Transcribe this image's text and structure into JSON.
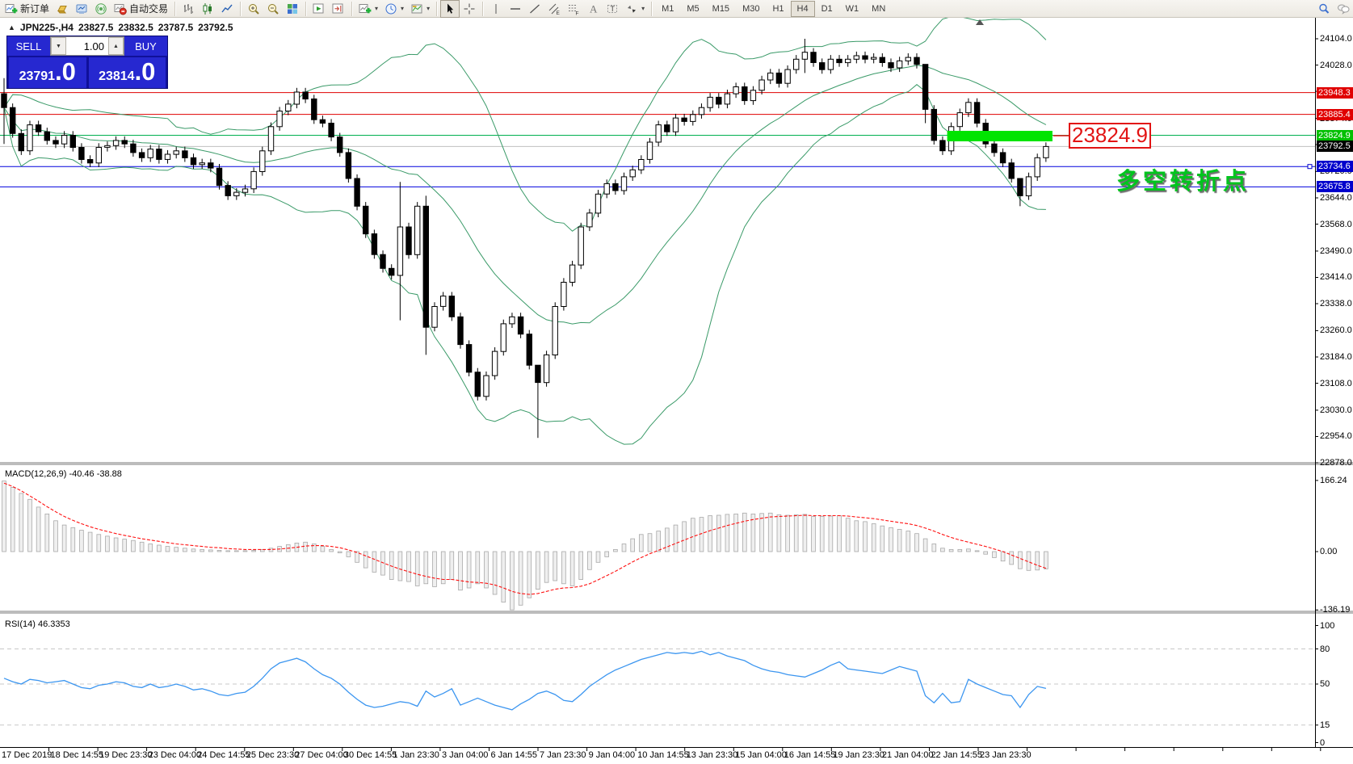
{
  "toolbar": {
    "buttons": [
      {
        "name": "new-order",
        "icon": "new-order-icon",
        "label": "新订单"
      },
      {
        "name": "market",
        "icon": "gold-icon"
      },
      {
        "name": "market-watch",
        "icon": "monitor-icon"
      },
      {
        "name": "signals",
        "icon": "signal-icon"
      },
      {
        "name": "autotrading",
        "icon": "autotrading-icon",
        "label": "自动交易"
      },
      {
        "type": "sep"
      },
      {
        "name": "bar-chart-mode",
        "icon": "bar-chart-icon"
      },
      {
        "name": "candle-chart-mode",
        "icon": "candlestick-icon"
      },
      {
        "name": "line-chart-mode",
        "icon": "line-chart-icon"
      },
      {
        "type": "sep"
      },
      {
        "name": "zoom-in",
        "icon": "zoom-in-icon"
      },
      {
        "name": "zoom-out",
        "icon": "zoom-out-icon"
      },
      {
        "name": "tile-windows",
        "icon": "tile-windows-icon"
      },
      {
        "type": "sep"
      },
      {
        "name": "chart-shift",
        "icon": "chart-shift-icon"
      },
      {
        "name": "auto-scroll",
        "icon": "auto-scroll-icon"
      },
      {
        "type": "sep"
      },
      {
        "name": "indicators",
        "icon": "indicators-icon",
        "dropdown": true
      },
      {
        "name": "periods",
        "icon": "clock-icon",
        "dropdown": true
      },
      {
        "name": "templates",
        "icon": "templates-icon",
        "dropdown": true
      },
      {
        "type": "sep"
      },
      {
        "name": "cursor",
        "icon": "cursor-icon",
        "active": true
      },
      {
        "name": "crosshair",
        "icon": "crosshair-icon"
      },
      {
        "type": "sep"
      },
      {
        "name": "vertical-line",
        "icon": "vertical-line-icon"
      },
      {
        "name": "horizontal-line",
        "icon": "horizontal-line-icon"
      },
      {
        "name": "trendline",
        "icon": "trendline-icon"
      },
      {
        "name": "equidistant-channel",
        "icon": "channel-icon"
      },
      {
        "name": "fibonacci",
        "icon": "fibonacci-icon"
      },
      {
        "name": "text",
        "icon": "text-icon"
      },
      {
        "name": "text-label",
        "icon": "text-label-icon"
      },
      {
        "name": "arrows",
        "icon": "arrows-icon",
        "dropdown": true
      },
      {
        "type": "sep"
      }
    ],
    "timeframes": [
      "M1",
      "M5",
      "M15",
      "M30",
      "H1",
      "H4",
      "D1",
      "W1",
      "MN"
    ],
    "active_timeframe": "H4",
    "right_buttons": [
      {
        "name": "search",
        "icon": "search-icon"
      },
      {
        "name": "chat",
        "icon": "chat-icon"
      }
    ]
  },
  "chart_header": {
    "toggle": "▲",
    "symbol": "JPN225-,H4",
    "open": "23827.5",
    "high": "23832.5",
    "low": "23787.5",
    "close": "23792.5"
  },
  "trade_panel": {
    "sell_label": "SELL",
    "buy_label": "BUY",
    "volume": "1.00",
    "stepper_down": "▼",
    "stepper_up": "▲",
    "sell_price_main": "23791",
    "sell_price_pips": ".0",
    "buy_price_main": "23814",
    "buy_price_pips": ".0"
  },
  "annotations": {
    "price_callout": "23824.9",
    "turning_point": "多空转折点"
  },
  "indicator_labels": {
    "macd": "MACD(12,26,9) -40.46 -38.88",
    "rsi": "RSI(14) 46.3353"
  },
  "colors": {
    "panel_blue": "#2628d0",
    "line_red": "#e00000",
    "line_green": "#00b050",
    "line_blue": "#0000dd",
    "current_price_gray": "#c0c0c0",
    "highlight_green": "#00e400",
    "callout_red": "#e21313",
    "turning_green": "#00c41e",
    "bollinger_green": "#3a9a68",
    "macd_hist_gray": "#a8a8a8",
    "macd_signal_red": "#ff1010",
    "rsi_blue": "#3c96f0"
  },
  "time_axis": [
    "17 Dec 2019",
    "18 Dec 14:55",
    "19 Dec 23:30",
    "23 Dec 04:00",
    "24 Dec 14:55",
    "25 Dec 23:30",
    "27 Dec 04:00",
    "30 Dec 14:55",
    "1 Jan 23:30",
    "3 Jan 04:00",
    "6 Jan 14:55",
    "7 Jan 23:30",
    "9 Jan 04:00",
    "10 Jan 14:55",
    "13 Jan 23:30",
    "15 Jan 04:00",
    "16 Jan 14:55",
    "19 Jan 23:30",
    "21 Jan 04:00",
    "22 Jan 14:55",
    "23 Jan 23:30"
  ],
  "chart_data": [
    {
      "type": "candlestick",
      "title": "JPN225-,H4",
      "ohlc": {
        "open": 23827.5,
        "high": 23832.5,
        "low": 23787.5,
        "close": 23792.5
      },
      "y_ticks": [
        "24104.0",
        "24028.0",
        "23952.0",
        "23874.0",
        "23798.0",
        "23720.0",
        "23644.0",
        "23568.0",
        "23490.0",
        "23414.0",
        "23338.0",
        "23260.0",
        "23184.0",
        "23108.0",
        "23030.0",
        "22954.0",
        "22878.0"
      ],
      "closes": [
        23905,
        23830,
        23780,
        23855,
        23835,
        23810,
        23800,
        23825,
        23790,
        23755,
        23745,
        23790,
        23795,
        23810,
        23800,
        23775,
        23760,
        23785,
        23755,
        23770,
        23780,
        23760,
        23740,
        23745,
        23730,
        23680,
        23650,
        23660,
        23670,
        23720,
        23780,
        23850,
        23895,
        23915,
        23950,
        23930,
        23870,
        23860,
        23820,
        23775,
        23700,
        23620,
        23540,
        23480,
        23440,
        23420,
        23560,
        23480,
        23620,
        23270,
        23330,
        23360,
        23300,
        23220,
        23140,
        23070,
        23130,
        23200,
        23280,
        23300,
        23250,
        23160,
        23110,
        23190,
        23330,
        23400,
        23450,
        23560,
        23600,
        23655,
        23685,
        23665,
        23705,
        23725,
        23755,
        23805,
        23855,
        23835,
        23875,
        23865,
        23885,
        23905,
        23935,
        23915,
        23945,
        23965,
        23925,
        23955,
        23985,
        24005,
        23975,
        24015,
        24045,
        24065,
        24035,
        24015,
        24045,
        24035,
        24045,
        24055,
        24045,
        24050,
        24035,
        24020,
        24040,
        24050,
        24030,
        23900,
        23810,
        23780,
        23850,
        23890,
        23920,
        23860,
        23800,
        23775,
        23745,
        23700,
        23650,
        23705,
        23760,
        23792.5
      ],
      "wick_overrides": {
        "0": [
          23990,
          23800
        ],
        "46": [
          23690,
          23290
        ],
        "49": [
          23650,
          23190
        ],
        "62": [
          23160,
          22950
        ],
        "93": [
          24104,
          24005
        ],
        "107": [
          24030,
          23860
        ],
        "118": [
          23700,
          23620
        ]
      },
      "bollinger": {
        "period": 20,
        "deviation": 2
      },
      "hlines": [
        {
          "price": 23948.3,
          "label": "23948.3",
          "color": "#e00000",
          "label_bg": "#e00000"
        },
        {
          "price": 23885.4,
          "label": "23885.4",
          "color": "#e00000",
          "label_bg": "#e00000"
        },
        {
          "price": 23824.9,
          "label": "23824.9",
          "color": "#00b050",
          "label_bg": "#00c000"
        },
        {
          "price": 23734.6,
          "label": "23734.6",
          "color": "#0000dd",
          "label_bg": "#0000cc",
          "handle": true
        },
        {
          "price": 23675.8,
          "label": "23675.8",
          "color": "#0000dd",
          "label_bg": "#0000cc"
        }
      ],
      "current_price": {
        "value": 23792.5,
        "label": "23792.5",
        "line_color": "#c0c0c0",
        "label_bg": "#000000"
      },
      "highlight_bar": {
        "price": 23824.9,
        "from_index": 110,
        "to_index": 121
      }
    },
    {
      "type": "bar",
      "name": "MACD",
      "params": [
        12,
        26,
        9
      ],
      "macd_value": -40.46,
      "signal_value": -38.88,
      "y_ticks": [
        "166.24",
        "0.00",
        "-136.19"
      ],
      "histogram": [
        165,
        150,
        136,
        122,
        104,
        88,
        72,
        62,
        56,
        50,
        45,
        40,
        36,
        32,
        29,
        26,
        22,
        18,
        15,
        12,
        10,
        8,
        6,
        5,
        4,
        3,
        2,
        2,
        2,
        3,
        5,
        8,
        12,
        16,
        20,
        22,
        18,
        12,
        5,
        -3,
        -12,
        -25,
        -38,
        -48,
        -55,
        -65,
        -68,
        -70,
        -80,
        -75,
        -82,
        -75,
        -65,
        -90,
        -85,
        -75,
        -85,
        -100,
        -118,
        -136,
        -125,
        -108,
        -88,
        -72,
        -68,
        -75,
        -80,
        -65,
        -42,
        -25,
        -12,
        5,
        18,
        30,
        40,
        42,
        48,
        55,
        62,
        70,
        78,
        80,
        84,
        85,
        87,
        88,
        90,
        88,
        89,
        90,
        86,
        85,
        86,
        87,
        82,
        82,
        83,
        84,
        78,
        72,
        70,
        65,
        60,
        56,
        52,
        48,
        42,
        30,
        18,
        8,
        5,
        5,
        6,
        2,
        -6,
        -14,
        -22,
        -30,
        -40,
        -44,
        -43,
        -40.46
      ],
      "signal": [
        160,
        152,
        142,
        130,
        118,
        105,
        93,
        82,
        73,
        65,
        58,
        52,
        47,
        42,
        38,
        34,
        30,
        27,
        24,
        21,
        18,
        16,
        14,
        12,
        10,
        9,
        7,
        6,
        5,
        5,
        5,
        5,
        6,
        8,
        10,
        13,
        14,
        14,
        12,
        9,
        4,
        -2,
        -10,
        -18,
        -26,
        -34,
        -41,
        -47,
        -53,
        -58,
        -62,
        -65,
        -65,
        -68,
        -71,
        -72,
        -74,
        -78,
        -85,
        -93,
        -98,
        -100,
        -98,
        -93,
        -88,
        -85,
        -84,
        -81,
        -75,
        -66,
        -56,
        -46,
        -35,
        -24,
        -14,
        -5,
        3,
        11,
        19,
        27,
        35,
        42,
        49,
        55,
        61,
        66,
        71,
        75,
        78,
        81,
        82,
        83,
        84,
        85,
        84,
        84,
        84,
        84,
        83,
        81,
        79,
        77,
        74,
        71,
        68,
        65,
        61,
        55,
        48,
        40,
        33,
        27,
        22,
        17,
        12,
        6,
        0,
        -8,
        -16,
        -24,
        -32,
        -38.88
      ]
    },
    {
      "type": "line",
      "name": "RSI",
      "params": [
        14
      ],
      "value": 46.3353,
      "y_ticks": [
        "100",
        "80",
        "50",
        "15",
        "0"
      ],
      "levels": [
        80,
        50,
        15
      ],
      "series": [
        55,
        52,
        50,
        54,
        53,
        51,
        52,
        53,
        50,
        47,
        46,
        49,
        50,
        52,
        51,
        48,
        47,
        50,
        47,
        48,
        50,
        48,
        45,
        46,
        44,
        41,
        40,
        42,
        43,
        48,
        55,
        63,
        68,
        70,
        72,
        69,
        63,
        58,
        55,
        50,
        43,
        37,
        32,
        30,
        31,
        33,
        35,
        34,
        31,
        44,
        39,
        42,
        46,
        32,
        35,
        38,
        35,
        32,
        30,
        28,
        33,
        37,
        42,
        44,
        41,
        36,
        35,
        41,
        48,
        53,
        58,
        62,
        65,
        68,
        71,
        73,
        75,
        77,
        76,
        77,
        76,
        78,
        75,
        77,
        74,
        72,
        70,
        66,
        63,
        61,
        60,
        58,
        57,
        56,
        59,
        62,
        66,
        69,
        63,
        62,
        61,
        60,
        59,
        62,
        65,
        63,
        61,
        40,
        34,
        42,
        34,
        35,
        54,
        50,
        47,
        44,
        41,
        40,
        30,
        41,
        48,
        46.3
      ]
    }
  ]
}
